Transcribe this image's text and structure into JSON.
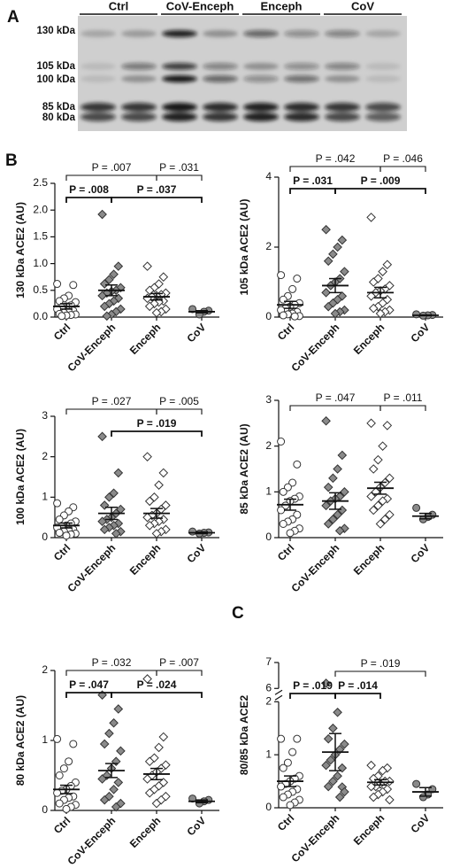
{
  "panels": [
    "A",
    "B",
    "C"
  ],
  "blot": {
    "lanes": [
      "Ctrl",
      "CoV-Enceph",
      "Enceph",
      "CoV"
    ],
    "markers": [
      "130 kDa",
      "105 kDa",
      "100 kDa",
      "85 kDa",
      "80 kDa"
    ]
  },
  "marker_styles": [
    {
      "shape": "circle",
      "fill": "#ffffff"
    },
    {
      "shape": "diamond",
      "fill": "#8a8a8a"
    },
    {
      "shape": "diamond",
      "fill": "#ffffff"
    },
    {
      "shape": "circle",
      "fill": "#8a8a8a"
    }
  ],
  "chart_data": [
    {
      "type": "strip",
      "ylabel": "130 kDa ACE2 (AU)",
      "categories": [
        "Ctrl",
        "CoV-Enceph",
        "Enceph",
        "CoV"
      ],
      "ylim": [
        0,
        2.5
      ],
      "yticks": [
        {
          "value": 0,
          "label": "0.0"
        },
        {
          "value": 0.5,
          "label": "0.5"
        },
        {
          "value": 1,
          "label": "1.0"
        },
        {
          "value": 1.5,
          "label": "1.5"
        },
        {
          "value": 2,
          "label": "2.0"
        },
        {
          "value": 2.5,
          "label": "2.5"
        }
      ],
      "points": [
        [
          0.62,
          0.6,
          0.4,
          0.35,
          0.3,
          0.28,
          0.22,
          0.2,
          0.18,
          0.15,
          0.12,
          0.1,
          0.08,
          0.06,
          0.05,
          0.04,
          0.03,
          0.02
        ],
        [
          1.92,
          0.95,
          0.8,
          0.7,
          0.62,
          0.55,
          0.5,
          0.48,
          0.45,
          0.4,
          0.35,
          0.3,
          0.25,
          0.2,
          0.15,
          0.1,
          0.05,
          0.02
        ],
        [
          0.95,
          0.75,
          0.62,
          0.55,
          0.5,
          0.45,
          0.42,
          0.4,
          0.38,
          0.35,
          0.3,
          0.28,
          0.25,
          0.2,
          0.15,
          0.1,
          0.08
        ],
        [
          0.15,
          0.12,
          0.1,
          0.05
        ]
      ],
      "means": [
        0.2,
        0.5,
        0.38,
        0.1
      ],
      "sems": [
        0.05,
        0.1,
        0.06,
        0.02
      ],
      "brackets": [
        [
          {
            "text": "P = .007",
            "between": [
              "Ctrl",
              "Enceph"
            ],
            "bold": false
          },
          {
            "text": "P = .031",
            "between": [
              "Enceph",
              "CoV"
            ],
            "bold": false
          }
        ],
        [
          {
            "text": "P = .008",
            "between": [
              "Ctrl",
              "CoV-Enceph"
            ],
            "bold": true
          },
          {
            "text": "P = .037",
            "between": [
              "CoV-Enceph",
              "CoV"
            ],
            "bold": true
          }
        ]
      ]
    },
    {
      "type": "strip",
      "ylabel": "105 kDa ACE2 (AU)",
      "categories": [
        "Ctrl",
        "CoV-Enceph",
        "Enceph",
        "CoV"
      ],
      "ylim": [
        0,
        4
      ],
      "yticks": [
        0,
        2,
        4
      ],
      "points": [
        [
          1.2,
          1.1,
          0.8,
          0.6,
          0.5,
          0.4,
          0.35,
          0.3,
          0.25,
          0.2,
          0.15,
          0.1,
          0.08,
          0.05,
          0.03,
          0.02
        ],
        [
          2.5,
          2.2,
          2.0,
          1.8,
          1.6,
          1.3,
          1.1,
          1.0,
          0.9,
          0.7,
          0.6,
          0.5,
          0.4,
          0.3,
          0.2,
          0.15,
          0.1
        ],
        [
          2.85,
          1.5,
          1.3,
          1.1,
          1.0,
          0.9,
          0.8,
          0.75,
          0.7,
          0.6,
          0.5,
          0.4,
          0.3,
          0.25,
          0.2,
          0.15,
          0.1
        ],
        [
          0.08,
          0.06,
          0.05,
          0.04
        ]
      ],
      "means": [
        0.35,
        0.9,
        0.7,
        0.05
      ],
      "sems": [
        0.1,
        0.2,
        0.15,
        0.01
      ],
      "brackets": [
        [
          {
            "text": "P = .042",
            "between": [
              "Ctrl",
              "Enceph"
            ],
            "bold": false
          },
          {
            "text": "P = .046",
            "between": [
              "Enceph",
              "CoV"
            ],
            "bold": false
          }
        ],
        [
          {
            "text": "P = .031",
            "between": [
              "Ctrl",
              "CoV-Enceph"
            ],
            "bold": true
          },
          {
            "text": "P = .009",
            "between": [
              "CoV-Enceph",
              "CoV"
            ],
            "bold": true
          }
        ]
      ]
    },
    {
      "type": "strip",
      "ylabel": "100 kDa ACE2 (AU)",
      "categories": [
        "Ctrl",
        "CoV-Enceph",
        "Enceph",
        "CoV"
      ],
      "ylim": [
        0,
        3
      ],
      "yticks": [
        0,
        1,
        2,
        3
      ],
      "points": [
        [
          0.85,
          0.75,
          0.65,
          0.55,
          0.45,
          0.4,
          0.35,
          0.3,
          0.28,
          0.25,
          0.2,
          0.18,
          0.15,
          0.12,
          0.1,
          0.08,
          0.05
        ],
        [
          2.5,
          1.6,
          1.1,
          1.0,
          0.8,
          0.7,
          0.6,
          0.5,
          0.45,
          0.4,
          0.35,
          0.3,
          0.25,
          0.2,
          0.15,
          0.1
        ],
        [
          2.0,
          1.6,
          1.3,
          1.0,
          0.9,
          0.8,
          0.7,
          0.6,
          0.55,
          0.5,
          0.45,
          0.4,
          0.35,
          0.3,
          0.2,
          0.15,
          0.1
        ],
        [
          0.15,
          0.13,
          0.12,
          0.1
        ]
      ],
      "means": [
        0.3,
        0.6,
        0.6,
        0.12
      ],
      "sems": [
        0.06,
        0.15,
        0.12,
        0.02
      ],
      "brackets": [
        [
          {
            "text": "P = .027",
            "between": [
              "Ctrl",
              "Enceph"
            ],
            "bold": false
          },
          {
            "text": "P = .005",
            "between": [
              "Enceph",
              "CoV"
            ],
            "bold": false
          }
        ],
        [
          {
            "text": "P = .019",
            "between": [
              "CoV-Enceph",
              "CoV"
            ],
            "bold": true
          }
        ]
      ]
    },
    {
      "type": "strip",
      "ylabel": "85 kDa ACE2 (AU)",
      "categories": [
        "Ctrl",
        "CoV-Enceph",
        "Enceph",
        "CoV"
      ],
      "ylim": [
        0,
        3
      ],
      "yticks": [
        0,
        1,
        2,
        3
      ],
      "points": [
        [
          2.1,
          1.6,
          1.2,
          1.1,
          1.0,
          0.9,
          0.85,
          0.8,
          0.7,
          0.6,
          0.5,
          0.4,
          0.35,
          0.3,
          0.2,
          0.15,
          0.1
        ],
        [
          2.55,
          1.8,
          1.5,
          1.3,
          1.1,
          1.0,
          0.9,
          0.85,
          0.8,
          0.7,
          0.6,
          0.5,
          0.4,
          0.3,
          0.2,
          0.15
        ],
        [
          2.5,
          2.45,
          2.0,
          1.7,
          1.5,
          1.3,
          1.2,
          1.1,
          1.0,
          0.9,
          0.85,
          0.8,
          0.7,
          0.6,
          0.5,
          0.4,
          0.3
        ],
        [
          0.65,
          0.5,
          0.45,
          0.4
        ]
      ],
      "means": [
        0.72,
        0.8,
        1.08,
        0.47
      ],
      "sems": [
        0.12,
        0.18,
        0.13,
        0.06
      ],
      "brackets": [
        [
          {
            "text": "P = .047",
            "between": [
              "Ctrl",
              "Enceph"
            ],
            "bold": false
          },
          {
            "text": "P = .011",
            "between": [
              "Enceph",
              "CoV"
            ],
            "bold": false
          }
        ]
      ]
    },
    {
      "type": "strip",
      "ylabel": "80 kDa ACE2 (AU)",
      "categories": [
        "Ctrl",
        "CoV-Enceph",
        "Enceph",
        "CoV"
      ],
      "ylim": [
        0,
        2
      ],
      "yticks": [
        0,
        1,
        2
      ],
      "points": [
        [
          1.02,
          0.95,
          0.7,
          0.6,
          0.5,
          0.4,
          0.35,
          0.3,
          0.28,
          0.25,
          0.2,
          0.18,
          0.15,
          0.1,
          0.08,
          0.05,
          0.02
        ],
        [
          1.65,
          1.45,
          1.25,
          1.1,
          0.95,
          0.85,
          0.7,
          0.6,
          0.5,
          0.45,
          0.4,
          0.3,
          0.2,
          0.15,
          0.1,
          0.05
        ],
        [
          1.88,
          1.05,
          0.9,
          0.75,
          0.7,
          0.65,
          0.6,
          0.55,
          0.5,
          0.45,
          0.4,
          0.35,
          0.3,
          0.25,
          0.2,
          0.15,
          0.1
        ],
        [
          0.17,
          0.15,
          0.13,
          0.1
        ]
      ],
      "means": [
        0.3,
        0.57,
        0.52,
        0.13
      ],
      "sems": [
        0.06,
        0.1,
        0.08,
        0.02
      ],
      "brackets": [
        [
          {
            "text": "P = .032",
            "between": [
              "Ctrl",
              "Enceph"
            ],
            "bold": false
          },
          {
            "text": "P = .007",
            "between": [
              "Enceph",
              "CoV"
            ],
            "bold": false
          }
        ],
        [
          {
            "text": "P = .047",
            "between": [
              "Ctrl",
              "CoV-Enceph"
            ],
            "bold": true
          },
          {
            "text": "P = .024",
            "between": [
              "CoV-Enceph",
              "CoV"
            ],
            "bold": true
          }
        ]
      ]
    },
    {
      "type": "strip",
      "ylabel": "80/85 kDa ACE2",
      "categories": [
        "Ctrl",
        "CoV-Enceph",
        "Enceph",
        "CoV"
      ],
      "ylim": [
        0,
        7
      ],
      "ybreak": [
        2,
        6
      ],
      "yticks": [
        0,
        1,
        2,
        6,
        7
      ],
      "points": [
        [
          1.3,
          1.3,
          1.05,
          0.85,
          0.75,
          0.6,
          0.55,
          0.5,
          0.45,
          0.4,
          0.35,
          0.3,
          0.25,
          0.2,
          0.15,
          0.1,
          0.05
        ],
        [
          6.2,
          2.2,
          1.8,
          1.5,
          1.3,
          1.2,
          1.1,
          1.0,
          0.9,
          0.8,
          0.75,
          0.6,
          0.5,
          0.4,
          0.3,
          0.2
        ],
        [
          0.8,
          0.75,
          0.7,
          0.6,
          0.55,
          0.5,
          0.5,
          0.45,
          0.4,
          0.4,
          0.35,
          0.3,
          0.25,
          0.2,
          0.15
        ],
        [
          0.45,
          0.35,
          0.25,
          0.2
        ]
      ],
      "means": [
        0.5,
        1.05,
        0.48,
        0.3
      ],
      "sems": [
        0.1,
        0.35,
        0.05,
        0.08
      ],
      "brackets": [
        [
          {
            "text": "P = .019",
            "between": [
              "CoV-Enceph",
              "CoV"
            ],
            "bold": false
          }
        ],
        [
          {
            "text": "P = .019",
            "between": [
              "Ctrl",
              "CoV-Enceph"
            ],
            "bold": true
          },
          {
            "text": "P = .014",
            "between": [
              "CoV-Enceph",
              "Enceph"
            ],
            "bold": true
          }
        ]
      ]
    }
  ]
}
